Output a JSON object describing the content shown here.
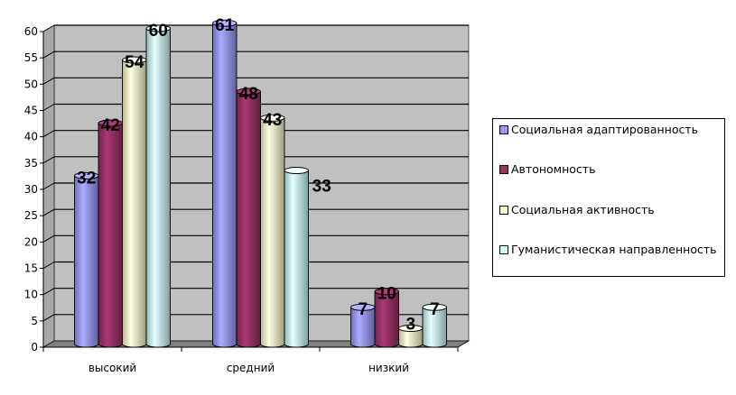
{
  "chart_data": {
    "type": "bar",
    "categories": [
      "высокий",
      "средний",
      "низкий"
    ],
    "series": [
      {
        "name": "Социальная адаптированность",
        "values": [
          32,
          61,
          7
        ],
        "color": "#9999FF"
      },
      {
        "name": "Автономность",
        "values": [
          42,
          48,
          10
        ],
        "color": "#993366"
      },
      {
        "name": "Социальная активность",
        "values": [
          54,
          43,
          3
        ],
        "color": "#FFFFCC"
      },
      {
        "name": "Гуманистическая направленность",
        "values": [
          60,
          33,
          7
        ],
        "color": "#CCFFFF"
      }
    ],
    "data_labels": [
      [
        "32",
        "61",
        "7"
      ],
      [
        "42",
        "48",
        "10"
      ],
      [
        "54",
        "43",
        "3"
      ],
      [
        "60",
        "33",
        "7"
      ]
    ],
    "yticks": [
      "0",
      "5",
      "10",
      "15",
      "20",
      "25",
      "30",
      "35",
      "40",
      "45",
      "50",
      "55",
      "60"
    ],
    "ylim": [
      0,
      60
    ],
    "grid": true,
    "legend_position": "right",
    "wall_color": "#C0C0C0",
    "title": "",
    "xlabel": "",
    "ylabel": ""
  },
  "legend": {
    "items": [
      "Социальная адаптированность",
      "Автономность",
      "Социальная активность",
      "Гуманистическая направленность"
    ]
  }
}
